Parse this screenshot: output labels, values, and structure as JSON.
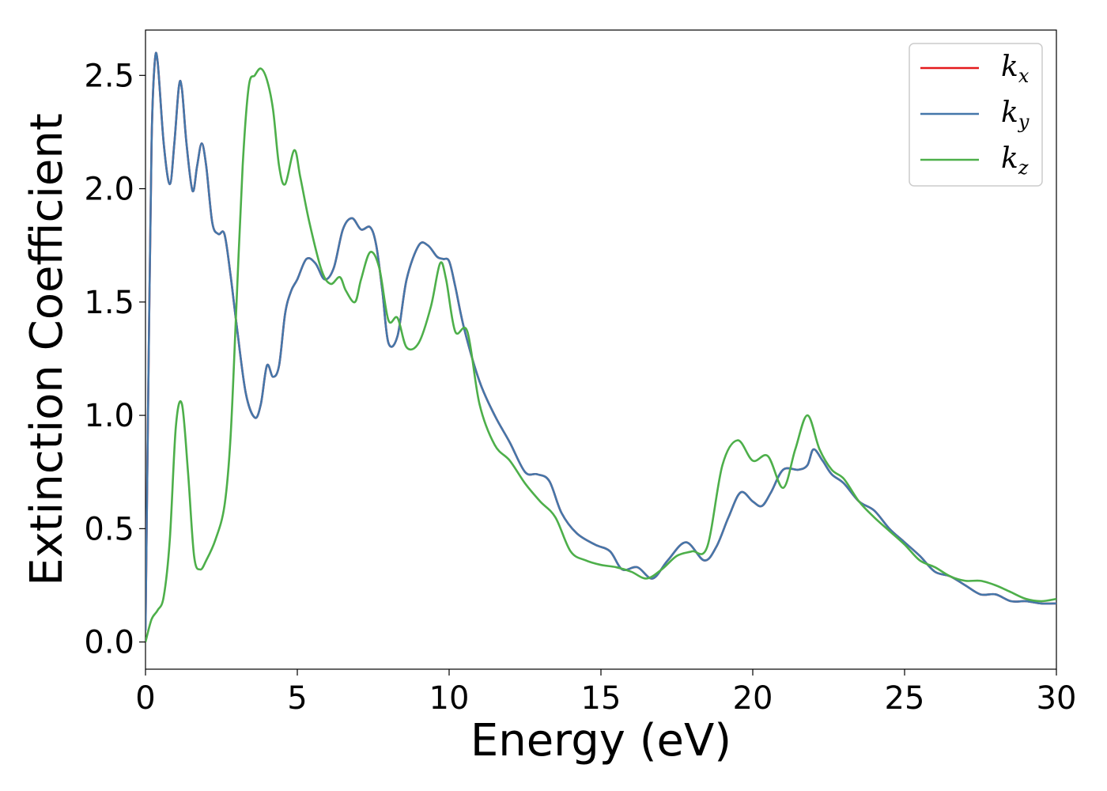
{
  "chart_data": {
    "type": "line",
    "xlabel": "Energy (eV)",
    "ylabel": "Extinction Coefficient",
    "xlim": [
      0,
      30
    ],
    "ylim": [
      -0.12,
      2.7
    ],
    "xticks": [
      0,
      5,
      10,
      15,
      20,
      25,
      30
    ],
    "xtick_labels": [
      "0",
      "5",
      "10",
      "15",
      "20",
      "25",
      "30"
    ],
    "yticks": [
      0.0,
      0.5,
      1.0,
      1.5,
      2.0,
      2.5
    ],
    "ytick_labels": [
      "0.0",
      "0.5",
      "1.0",
      "1.5",
      "2.0",
      "2.5"
    ],
    "grid": false,
    "legend": {
      "placement": "top-right",
      "entries": [
        {
          "base": "k",
          "sub": "x",
          "color": "#e41a1c"
        },
        {
          "base": "k",
          "sub": "y",
          "color": "#4477aa"
        },
        {
          "base": "k",
          "sub": "z",
          "color": "#4daf4a"
        }
      ]
    },
    "series": [
      {
        "name": "kx",
        "color": "#e41a1c",
        "x": [
          0,
          0.1,
          0.2,
          0.3,
          0.4,
          0.6,
          0.8,
          0.95,
          1.1,
          1.2,
          1.35,
          1.55,
          1.7,
          1.85,
          2.0,
          2.2,
          2.4,
          2.6,
          2.8,
          3.0,
          3.3,
          3.6,
          3.8,
          4.0,
          4.2,
          4.4,
          4.6,
          4.8,
          5.0,
          5.3,
          5.6,
          5.9,
          6.2,
          6.5,
          6.8,
          7.1,
          7.4,
          7.6,
          7.8,
          8.0,
          8.3,
          8.6,
          9.0,
          9.3,
          9.6,
          9.8,
          10.0,
          10.2,
          10.5,
          11.0,
          11.5,
          12.0,
          12.5,
          12.9,
          13.3,
          13.7,
          14.2,
          14.8,
          15.3,
          15.7,
          16.2,
          16.7,
          17.2,
          17.8,
          18.4,
          18.8,
          19.2,
          19.6,
          20.0,
          20.3,
          20.6,
          21.0,
          21.5,
          21.8,
          22.0,
          22.3,
          22.6,
          23.0,
          23.5,
          24.0,
          24.5,
          25.0,
          25.5,
          26.0,
          26.5,
          27.0,
          27.5,
          28.0,
          28.5,
          29.0,
          29.5,
          30.0
        ],
        "y": [
          0.05,
          1.2,
          2.2,
          2.55,
          2.56,
          2.2,
          2.02,
          2.2,
          2.45,
          2.44,
          2.2,
          1.99,
          2.1,
          2.2,
          2.1,
          1.85,
          1.8,
          1.8,
          1.62,
          1.4,
          1.1,
          0.99,
          1.05,
          1.22,
          1.17,
          1.22,
          1.45,
          1.55,
          1.6,
          1.69,
          1.67,
          1.6,
          1.65,
          1.82,
          1.87,
          1.82,
          1.83,
          1.75,
          1.55,
          1.32,
          1.35,
          1.6,
          1.75,
          1.75,
          1.7,
          1.69,
          1.68,
          1.57,
          1.38,
          1.15,
          1.0,
          0.88,
          0.75,
          0.74,
          0.71,
          0.57,
          0.48,
          0.43,
          0.4,
          0.32,
          0.33,
          0.28,
          0.36,
          0.44,
          0.36,
          0.42,
          0.55,
          0.66,
          0.62,
          0.6,
          0.66,
          0.76,
          0.76,
          0.78,
          0.85,
          0.8,
          0.74,
          0.7,
          0.62,
          0.58,
          0.5,
          0.44,
          0.38,
          0.31,
          0.29,
          0.25,
          0.21,
          0.21,
          0.18,
          0.18,
          0.17,
          0.17
        ]
      },
      {
        "name": "ky",
        "color": "#4477aa",
        "x": [
          0,
          0.1,
          0.2,
          0.3,
          0.4,
          0.6,
          0.8,
          0.95,
          1.1,
          1.2,
          1.35,
          1.55,
          1.7,
          1.85,
          2.0,
          2.2,
          2.4,
          2.6,
          2.8,
          3.0,
          3.3,
          3.6,
          3.8,
          4.0,
          4.2,
          4.4,
          4.6,
          4.8,
          5.0,
          5.3,
          5.6,
          5.9,
          6.2,
          6.5,
          6.8,
          7.1,
          7.4,
          7.6,
          7.8,
          8.0,
          8.3,
          8.6,
          9.0,
          9.3,
          9.6,
          9.8,
          10.0,
          10.2,
          10.5,
          11.0,
          11.5,
          12.0,
          12.5,
          12.9,
          13.3,
          13.7,
          14.2,
          14.8,
          15.3,
          15.7,
          16.2,
          16.7,
          17.2,
          17.8,
          18.4,
          18.8,
          19.2,
          19.6,
          20.0,
          20.3,
          20.6,
          21.0,
          21.5,
          21.8,
          22.0,
          22.3,
          22.6,
          23.0,
          23.5,
          24.0,
          24.5,
          25.0,
          25.5,
          26.0,
          26.5,
          27.0,
          27.5,
          28.0,
          28.5,
          29.0,
          29.5,
          30.0
        ],
        "y": [
          0.05,
          1.2,
          2.2,
          2.55,
          2.56,
          2.2,
          2.02,
          2.2,
          2.45,
          2.44,
          2.2,
          1.99,
          2.1,
          2.2,
          2.1,
          1.85,
          1.8,
          1.8,
          1.62,
          1.4,
          1.1,
          0.99,
          1.05,
          1.22,
          1.17,
          1.22,
          1.45,
          1.55,
          1.6,
          1.69,
          1.67,
          1.6,
          1.65,
          1.82,
          1.87,
          1.82,
          1.83,
          1.75,
          1.55,
          1.32,
          1.35,
          1.6,
          1.75,
          1.75,
          1.7,
          1.69,
          1.68,
          1.57,
          1.38,
          1.15,
          1.0,
          0.88,
          0.75,
          0.74,
          0.71,
          0.57,
          0.48,
          0.43,
          0.4,
          0.32,
          0.33,
          0.28,
          0.36,
          0.44,
          0.36,
          0.42,
          0.55,
          0.66,
          0.62,
          0.6,
          0.66,
          0.76,
          0.76,
          0.78,
          0.85,
          0.8,
          0.74,
          0.7,
          0.62,
          0.58,
          0.5,
          0.44,
          0.38,
          0.31,
          0.29,
          0.25,
          0.21,
          0.21,
          0.18,
          0.18,
          0.17,
          0.17
        ]
      },
      {
        "name": "kz",
        "color": "#4daf4a",
        "x": [
          0,
          0.2,
          0.4,
          0.6,
          0.8,
          1.0,
          1.2,
          1.4,
          1.6,
          1.8,
          2.0,
          2.3,
          2.6,
          2.8,
          3.0,
          3.2,
          3.4,
          3.6,
          3.8,
          4.0,
          4.2,
          4.4,
          4.6,
          4.9,
          5.1,
          5.4,
          5.8,
          6.1,
          6.4,
          6.6,
          6.9,
          7.1,
          7.4,
          7.7,
          8.0,
          8.3,
          8.6,
          9.0,
          9.4,
          9.7,
          9.9,
          10.2,
          10.6,
          11.0,
          11.5,
          12.0,
          12.5,
          13.0,
          13.5,
          14.0,
          14.5,
          15.0,
          15.5,
          16.0,
          16.5,
          17.0,
          17.5,
          18.0,
          18.5,
          19.0,
          19.5,
          20.0,
          20.5,
          21.0,
          21.4,
          21.8,
          22.2,
          22.6,
          23.0,
          23.5,
          24.0,
          24.5,
          25.0,
          25.5,
          26.0,
          26.5,
          27.0,
          27.5,
          28.0,
          28.5,
          29.0,
          29.5,
          30.0
        ],
        "y": [
          0.0,
          0.1,
          0.14,
          0.2,
          0.45,
          0.95,
          1.05,
          0.75,
          0.38,
          0.32,
          0.36,
          0.45,
          0.6,
          0.9,
          1.5,
          2.1,
          2.45,
          2.5,
          2.53,
          2.48,
          2.35,
          2.1,
          2.02,
          2.17,
          2.05,
          1.85,
          1.64,
          1.58,
          1.61,
          1.55,
          1.5,
          1.6,
          1.72,
          1.65,
          1.42,
          1.43,
          1.3,
          1.32,
          1.48,
          1.67,
          1.6,
          1.37,
          1.37,
          1.05,
          0.87,
          0.8,
          0.7,
          0.62,
          0.55,
          0.4,
          0.36,
          0.34,
          0.33,
          0.31,
          0.28,
          0.32,
          0.38,
          0.4,
          0.42,
          0.78,
          0.89,
          0.8,
          0.82,
          0.68,
          0.85,
          1.0,
          0.85,
          0.76,
          0.72,
          0.62,
          0.55,
          0.49,
          0.43,
          0.36,
          0.33,
          0.29,
          0.27,
          0.27,
          0.25,
          0.22,
          0.19,
          0.18,
          0.19
        ]
      }
    ]
  }
}
